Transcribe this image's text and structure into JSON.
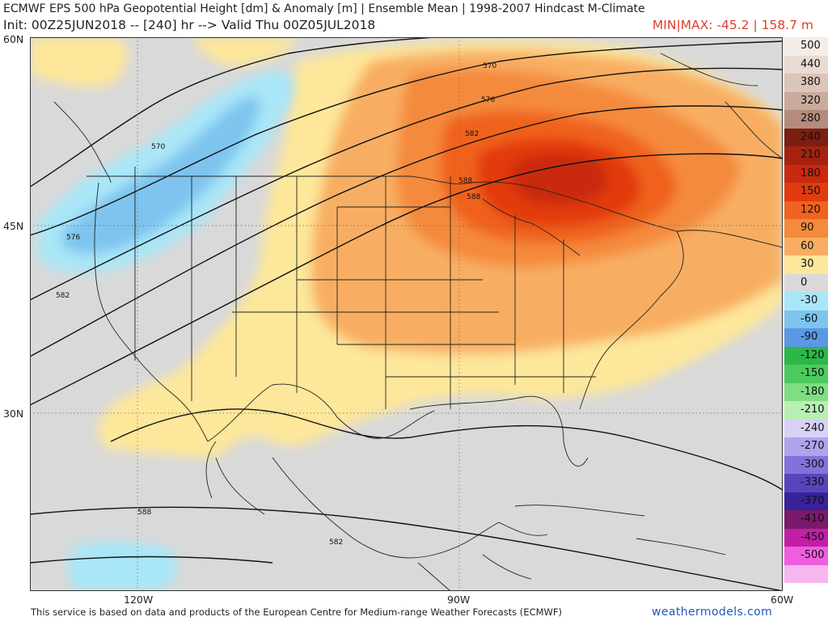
{
  "header": {
    "line1": "ECMWF EPS 500 hPa Geopotential Height [dm] & Anomaly [m] | Ensemble Mean | 1998-2007 Hindcast M-Climate",
    "line2": "Init: 00Z25JUN2018 -- [240] hr --> Valid Thu 00Z05JUL2018",
    "minmax": "MIN|MAX: -45.2 | 158.7 m"
  },
  "axes": {
    "lat_labels": [
      "60N",
      "45N",
      "30N"
    ],
    "lon_labels": [
      "120W",
      "90W",
      "60W"
    ]
  },
  "contours": {
    "labels": [
      "570",
      "576",
      "582",
      "588",
      "570",
      "576",
      "582",
      "588",
      "582",
      "588"
    ]
  },
  "colorbar": {
    "levels": [
      {
        "label": "500",
        "color": "#f4ede8"
      },
      {
        "label": "440",
        "color": "#e9dbd1"
      },
      {
        "label": "380",
        "color": "#dbc5b8"
      },
      {
        "label": "320",
        "color": "#c9aa9b"
      },
      {
        "label": "280",
        "color": "#b48b7c"
      },
      {
        "label": "240",
        "color": "#7a1f12"
      },
      {
        "label": "210",
        "color": "#a6220f"
      },
      {
        "label": "180",
        "color": "#c9290f"
      },
      {
        "label": "150",
        "color": "#e23b10"
      },
      {
        "label": "120",
        "color": "#f0621e"
      },
      {
        "label": "90",
        "color": "#f48a3c"
      },
      {
        "label": "60",
        "color": "#f8ae62"
      },
      {
        "label": "30",
        "color": "#fde79a"
      },
      {
        "label": "0",
        "color": "#d9d9d9"
      },
      {
        "label": "-30",
        "color": "#a9e6f7"
      },
      {
        "label": "-60",
        "color": "#7ec4ef"
      },
      {
        "label": "-90",
        "color": "#5a98e6"
      },
      {
        "label": "-120",
        "color": "#2db64a"
      },
      {
        "label": "-150",
        "color": "#4dcb5e"
      },
      {
        "label": "-180",
        "color": "#7fde84"
      },
      {
        "label": "-210",
        "color": "#b8efb4"
      },
      {
        "label": "-240",
        "color": "#d7d2f6"
      },
      {
        "label": "-270",
        "color": "#aea4ec"
      },
      {
        "label": "-300",
        "color": "#8272d9"
      },
      {
        "label": "-330",
        "color": "#5a44bd"
      },
      {
        "label": "-370",
        "color": "#3a229a"
      },
      {
        "label": "-410",
        "color": "#7a1a6a"
      },
      {
        "label": "-450",
        "color": "#c21fa6"
      },
      {
        "label": "-500",
        "color": "#ee5ee0"
      },
      {
        "label": "",
        "color": "#f6b6f0"
      }
    ]
  },
  "footer": {
    "credit": "This service is based on data and products of the European Centre for Medium-range Weather Forecasts (ECMWF)",
    "brand": "weathermodels.com"
  }
}
